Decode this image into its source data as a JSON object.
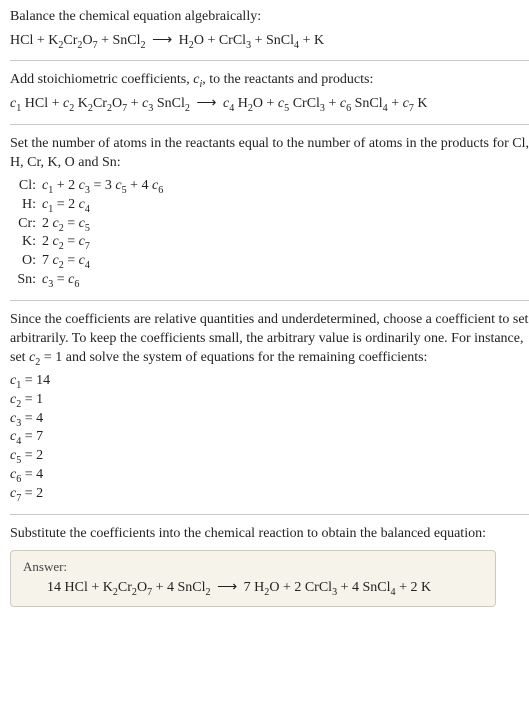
{
  "intro1": "Balance the chemical equation algebraically:",
  "eq_unbalanced": "HCl + K₂Cr₂O₇ + SnCl₂  ⟶  H₂O + CrCl₃ + SnCl₄ + K",
  "intro2": "Add stoichiometric coefficients, cᵢ, to the reactants and products:",
  "eq_with_c": "c₁ HCl + c₂ K₂Cr₂O₇ + c₃ SnCl₂  ⟶  c₄ H₂O + c₅ CrCl₃ + c₆ SnCl₄ + c₇ K",
  "atoms_intro": "Set the number of atoms in the reactants equal to the number of atoms in the products for Cl, H, Cr, K, O and Sn:",
  "elements": [
    {
      "label": "Cl:",
      "eq": "c₁ + 2 c₃ = 3 c₅ + 4 c₆"
    },
    {
      "label": "H:",
      "eq": "c₁ = 2 c₄"
    },
    {
      "label": "Cr:",
      "eq": "2 c₂ = c₅"
    },
    {
      "label": "K:",
      "eq": "2 c₂ = c₇"
    },
    {
      "label": "O:",
      "eq": "7 c₂ = c₄"
    },
    {
      "label": "Sn:",
      "eq": "c₃ = c₆"
    }
  ],
  "relative_para": "Since the coefficients are relative quantities and underdetermined, choose a coefficient to set arbitrarily. To keep the coefficients small, the arbitrary value is ordinarily one. For instance, set c₂ = 1 and solve the system of equations for the remaining coefficients:",
  "coeffs": [
    "c₁ = 14",
    "c₂ = 1",
    "c₃ = 4",
    "c₄ = 7",
    "c₅ = 2",
    "c₆ = 4",
    "c₇ = 2"
  ],
  "subst_para": "Substitute the coefficients into the chemical reaction to obtain the balanced equation:",
  "answer_label": "Answer:",
  "answer_eq": "14 HCl + K₂Cr₂O₇ + 4 SnCl₂  ⟶  7 H₂O + 2 CrCl₃ + 4 SnCl₄ + 2 K",
  "colors": {
    "rule": "#c9c9c9",
    "box_bg": "#f6f3ea",
    "box_border": "#d0c9b8",
    "text": "#222222"
  }
}
